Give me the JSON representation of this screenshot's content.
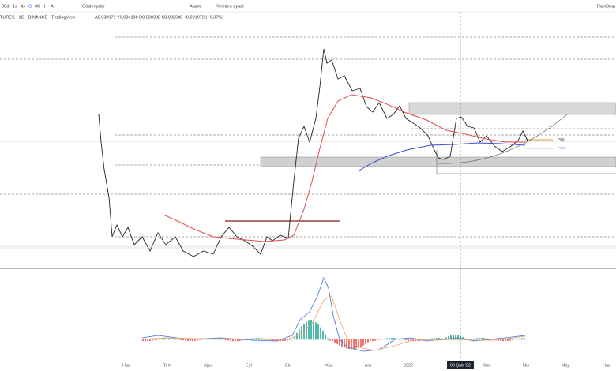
{
  "toolbar": {
    "intervals": [
      "30d",
      "1s",
      "4s",
      "G",
      "3G",
      "H",
      "A"
    ],
    "indicators": "Göstergeler",
    "alarm": "Alarm",
    "replay": "Yeniden oynat",
    "user": "RainDrop"
  },
  "legend": {
    "symbol": "TURES · 1G · BINANCE · TradingView",
    "ohlc": "A0.030971 Y0.034100 D0.030388 K0.032940 +0.001972 (+6.37%)"
  },
  "levels": [
    "PWL",
    "PWO"
  ],
  "x_axis": [
    "Haz",
    "Tem",
    "Ağu",
    "Eyl",
    "Eki",
    "Kas",
    "Ara",
    "2022",
    "09 Şub '22",
    "Mar",
    "Nis",
    "May",
    "Haz"
  ]
}
